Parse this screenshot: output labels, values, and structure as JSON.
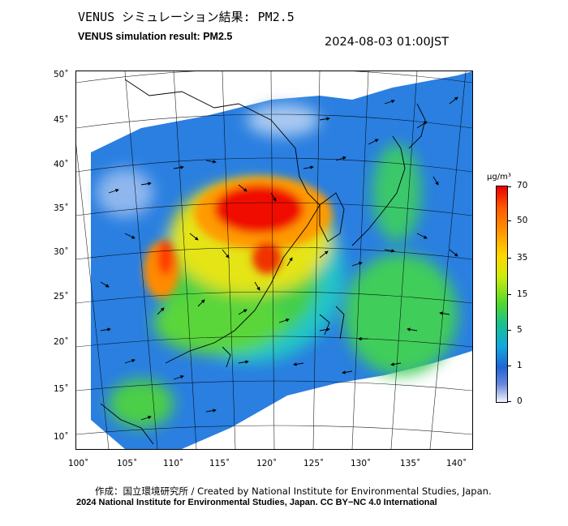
{
  "header": {
    "title_jp": "VENUS シミュレーション結果: PM2.5",
    "title_en": "VENUS simulation result: PM2.5",
    "timestamp": "2024-08-03 01:00JST"
  },
  "map": {
    "lat_ticks": [
      "50˚",
      "45˚",
      "40˚",
      "35˚",
      "30˚",
      "25˚",
      "20˚",
      "15˚",
      "10˚"
    ],
    "lon_ticks": [
      "100˚",
      "105˚",
      "110˚",
      "115˚",
      "120˚",
      "125˚",
      "130˚",
      "135˚",
      "140˚"
    ],
    "lat_values": [
      50,
      45,
      40,
      35,
      30,
      25,
      20,
      15,
      10
    ],
    "lon_values": [
      100,
      105,
      110,
      115,
      120,
      125,
      130,
      135,
      140
    ],
    "lon_range": [
      100,
      141
    ],
    "lat_range": [
      9,
      51
    ],
    "layers": [
      "PM2.5 concentration field",
      "wind vectors",
      "coastlines",
      "graticule"
    ]
  },
  "colorbar": {
    "unit": "μg/m³",
    "labels": [
      "70",
      "50",
      "35",
      "15",
      "5",
      "1",
      "0"
    ],
    "values": [
      70,
      50,
      35,
      15,
      5,
      1,
      0
    ],
    "colors": {
      "70": "#ea0000",
      "50": "#ff9c00",
      "35": "#cdec0c",
      "15": "#18c090",
      "5": "#12a9de",
      "1": "#1f64d6",
      "0": "#f4f4ff"
    }
  },
  "footer": {
    "credit_line1": "作成：国立環境研究所 / Created by National Institute for Environmental Studies, Japan.",
    "credit_line2": "2024 National Institute for Environmental Studies, Japan. CC BY−NC 4.0 International"
  }
}
